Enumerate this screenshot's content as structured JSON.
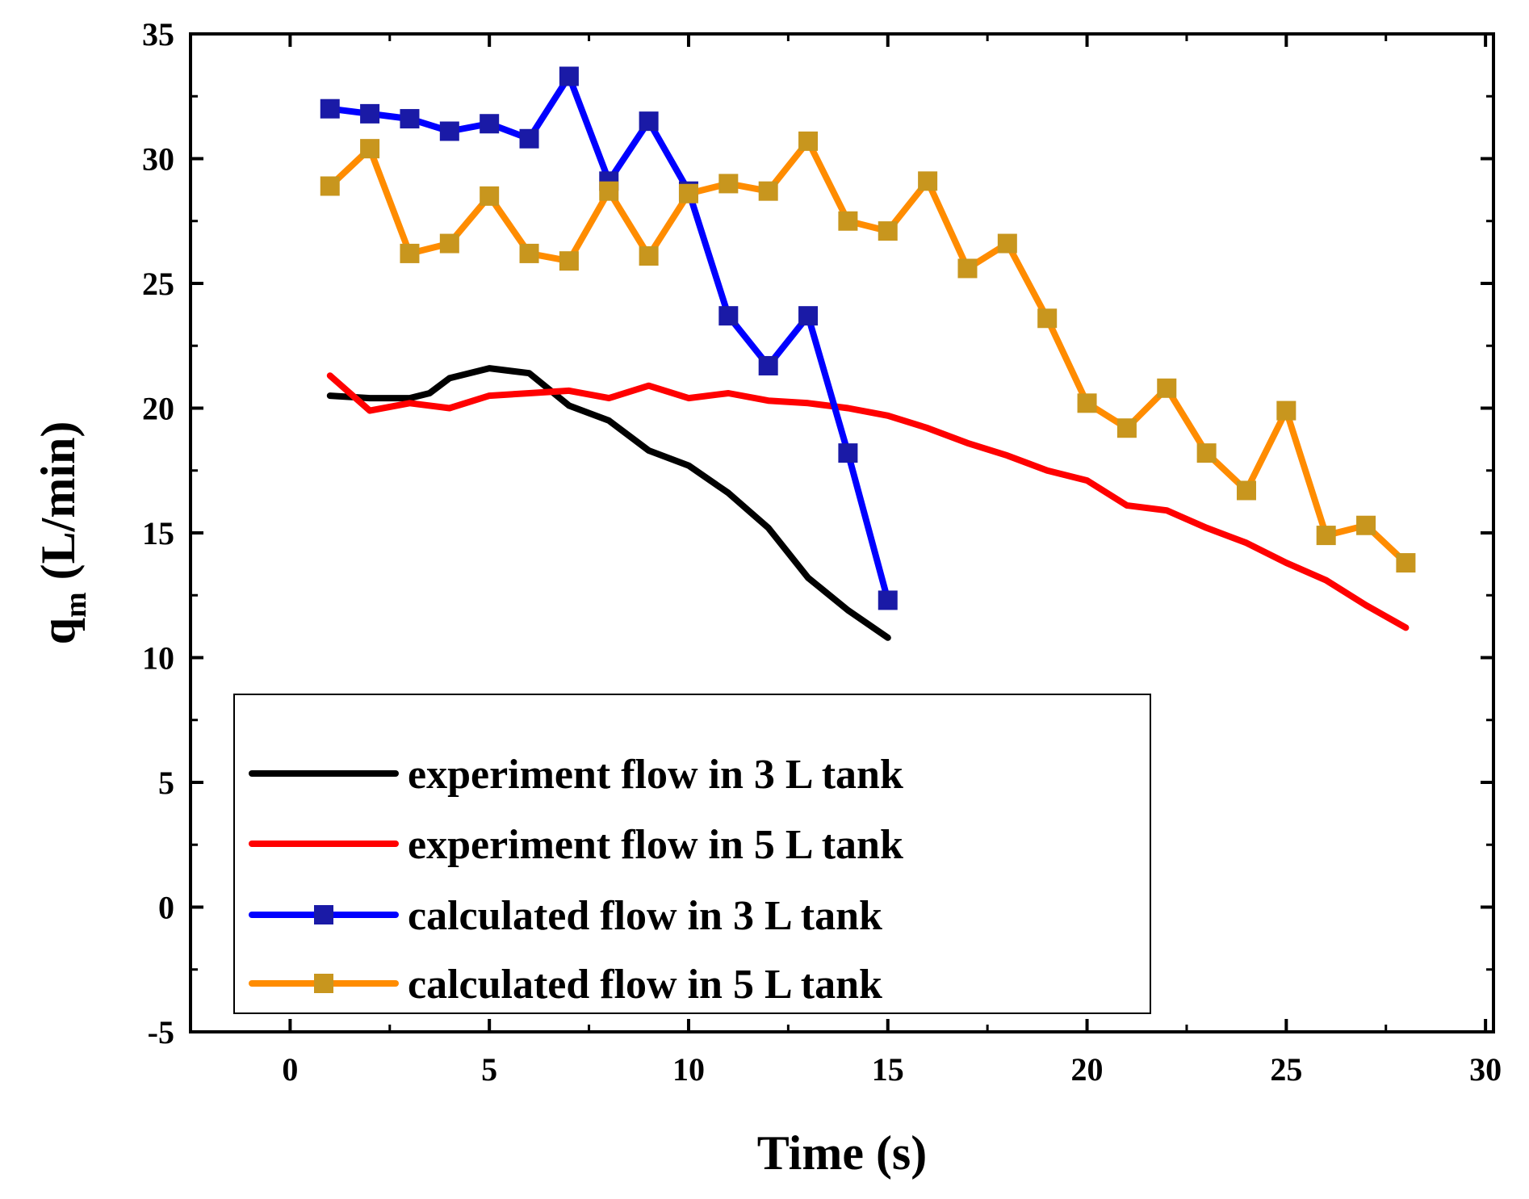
{
  "chart_data": {
    "type": "line",
    "title": "",
    "xlabel": "Time (s)",
    "ylabel_main": "q",
    "ylabel_sub": "m",
    "ylabel_unit": " (L/min)",
    "xlim": [
      -2.5,
      30.2
    ],
    "ylim": [
      -5,
      35
    ],
    "xticks": [
      0,
      5,
      10,
      15,
      20,
      25,
      30
    ],
    "yticks": [
      -5,
      0,
      5,
      10,
      15,
      20,
      25,
      30,
      35
    ],
    "legend_position": "bottom-left",
    "series": [
      {
        "name": "experiment flow in 3 L tank",
        "color": "#000000",
        "marker": "none",
        "x": [
          1,
          2,
          3,
          3.5,
          4,
          5,
          6,
          7,
          8,
          9,
          10,
          11,
          12,
          13,
          14,
          15
        ],
        "y": [
          20.5,
          20.4,
          20.4,
          20.6,
          21.2,
          21.6,
          21.4,
          20.1,
          19.5,
          18.3,
          17.7,
          16.6,
          15.2,
          13.2,
          11.9,
          10.8
        ]
      },
      {
        "name": "experiment flow in 5 L tank",
        "color": "#ff0000",
        "marker": "none",
        "x": [
          1,
          2,
          3,
          4,
          5,
          6,
          7,
          8,
          9,
          10,
          11,
          12,
          13,
          14,
          15,
          16,
          17,
          18,
          19,
          20,
          21,
          22,
          23,
          24,
          25,
          26,
          27,
          28
        ],
        "y": [
          21.3,
          19.9,
          20.2,
          20.0,
          20.5,
          20.6,
          20.7,
          20.4,
          20.9,
          20.4,
          20.6,
          20.3,
          20.2,
          20.0,
          19.7,
          19.2,
          18.6,
          18.1,
          17.5,
          17.1,
          16.1,
          15.9,
          15.2,
          14.6,
          13.8,
          13.1,
          12.1,
          11.2
        ]
      },
      {
        "name": "calculated flow in 3 L tank",
        "color": "#0000ff",
        "marker": "square",
        "marker_color": "#1a1aa6",
        "x": [
          1,
          2,
          3,
          4,
          5,
          6,
          7,
          8,
          9,
          10,
          11,
          12,
          13,
          14,
          15
        ],
        "y": [
          32.0,
          31.8,
          31.6,
          31.1,
          31.4,
          30.8,
          33.3,
          29.1,
          31.5,
          28.7,
          23.7,
          21.7,
          23.7,
          18.2,
          12.3
        ]
      },
      {
        "name": "calculated flow in 5 L tank",
        "color": "#ff8c00",
        "marker": "square",
        "marker_color": "#c8961e",
        "x": [
          1,
          2,
          3,
          4,
          5,
          6,
          7,
          8,
          9,
          10,
          11,
          12,
          13,
          14,
          15,
          16,
          17,
          18,
          19,
          20,
          21,
          22,
          23,
          24,
          25,
          26,
          27,
          28
        ],
        "y": [
          28.9,
          30.4,
          26.2,
          26.6,
          28.5,
          26.2,
          25.9,
          28.7,
          26.1,
          28.6,
          29.0,
          28.7,
          30.7,
          27.5,
          27.1,
          29.1,
          25.6,
          26.6,
          23.6,
          20.2,
          19.2,
          20.8,
          18.2,
          16.7,
          19.9,
          14.9,
          15.3,
          13.8
        ]
      }
    ]
  }
}
